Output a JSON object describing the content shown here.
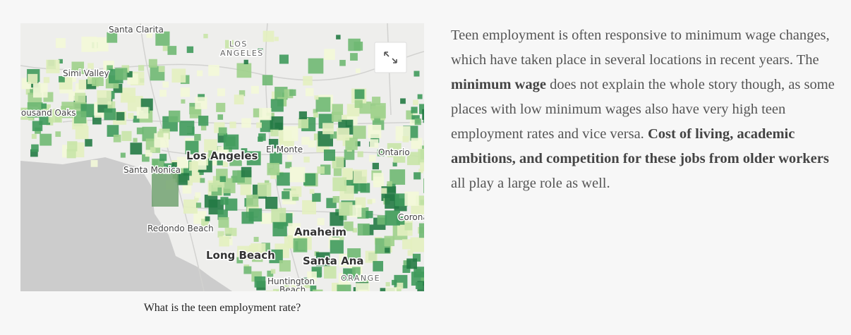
{
  "map": {
    "labels": [
      {
        "text": "Santa Clarita"
      },
      {
        "text": "LOS"
      },
      {
        "text": "ANGELES"
      },
      {
        "text": "Simi Valley"
      },
      {
        "text": "Thousand Oaks"
      },
      {
        "text": "Los Angeles"
      },
      {
        "text": "El Monte"
      },
      {
        "text": "Ontario"
      },
      {
        "text": "Santa Monica"
      },
      {
        "text": "Redondo Beach"
      },
      {
        "text": "Anaheim"
      },
      {
        "text": "Corona"
      },
      {
        "text": "Long Beach"
      },
      {
        "text": "Santa Ana"
      },
      {
        "text": "Huntington"
      },
      {
        "text": "Beach"
      },
      {
        "text": "ORANGE"
      }
    ],
    "caption": "What is the teen employment rate?"
  },
  "text": {
    "segments": [
      {
        "text": "Teen employment is often responsive to minimum wage changes, which have taken place in several locations in recent years. The "
      },
      {
        "text": "minimum wage",
        "bold": true
      },
      {
        "text": " does not explain the whole story though, as some places with low minimum wages also have very high teen employment rates and vice versa. "
      },
      {
        "text": "Cost of living, academic ambitions, and competition for these jobs from older workers",
        "bold": true
      },
      {
        "text": " all play a large role as well."
      }
    ]
  }
}
